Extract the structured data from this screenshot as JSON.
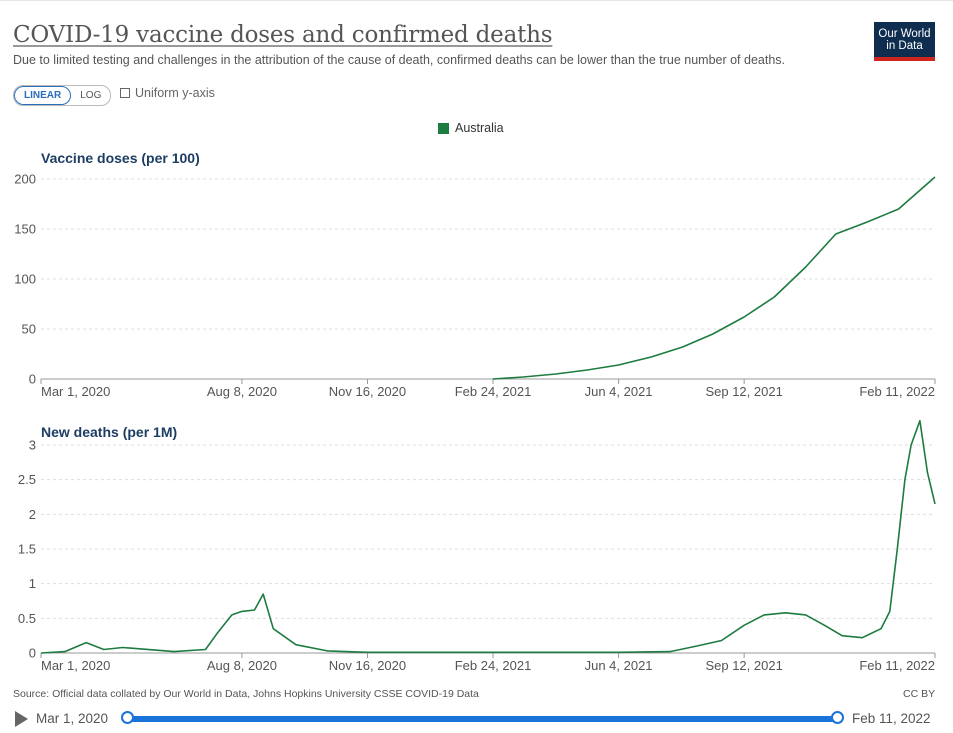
{
  "header": {
    "title": "COVID-19 vaccine doses and confirmed deaths",
    "subtitle": "Due to limited testing and challenges in the attribution of the cause of death, confirmed deaths can be lower than the true number of deaths.",
    "logo_line1": "Our World",
    "logo_line2": "in Data"
  },
  "controls": {
    "linear_label": "LINEAR",
    "log_label": "LOG",
    "active_scale": "LINEAR",
    "uniform_label": "Uniform y-axis",
    "uniform_checked": false
  },
  "legend": {
    "label": "Australia",
    "color": "#1d7c3f"
  },
  "chart_data": [
    {
      "type": "line",
      "title": "Vaccine doses (per 100)",
      "series": [
        {
          "name": "Australia",
          "color": "#1d7c3f",
          "x": [
            "Feb 24, 2021",
            "Mar 20, 2021",
            "Apr 15, 2021",
            "May 10, 2021",
            "Jun 4, 2021",
            "Jun 30, 2021",
            "Jul 25, 2021",
            "Aug 18, 2021",
            "Sep 12, 2021",
            "Oct 6, 2021",
            "Oct 31, 2021",
            "Nov 24, 2021",
            "Dec 19, 2021",
            "Jan 13, 2022",
            "Feb 11, 2022"
          ],
          "values": [
            0,
            2,
            5,
            9,
            14,
            22,
            32,
            45,
            62,
            82,
            112,
            145,
            157,
            170,
            202
          ]
        }
      ],
      "ylim": [
        0,
        200
      ],
      "yticks": [
        "0",
        "50",
        "100",
        "150",
        "200"
      ],
      "xticks": [
        "Mar 1, 2020",
        "Aug 8, 2020",
        "Nov 16, 2020",
        "Feb 24, 2021",
        "Jun 4, 2021",
        "Sep 12, 2021",
        "Feb 11, 2022"
      ]
    },
    {
      "type": "line",
      "title": "New deaths (per 1M)",
      "series": [
        {
          "name": "Australia",
          "color": "#1d7c3f",
          "x": [
            "Mar 1, 2020",
            "Mar 20, 2020",
            "Apr 6, 2020",
            "Apr 20, 2020",
            "May 5, 2020",
            "Jun 15, 2020",
            "Jul 10, 2020",
            "Jul 20, 2020",
            "Jul 31, 2020",
            "Aug 8, 2020",
            "Aug 18, 2020",
            "Aug 25, 2020",
            "Sep 2, 2020",
            "Sep 20, 2020",
            "Oct 15, 2020",
            "Nov 16, 2020",
            "Feb 24, 2021",
            "Jun 4, 2021",
            "Jul 15, 2021",
            "Aug 5, 2021",
            "Aug 25, 2021",
            "Sep 12, 2021",
            "Sep 28, 2021",
            "Oct 15, 2021",
            "Oct 31, 2021",
            "Nov 15, 2021",
            "Nov 29, 2021",
            "Dec 15, 2021",
            "Dec 30, 2021",
            "Jan 6, 2022",
            "Jan 12, 2022",
            "Jan 18, 2022",
            "Jan 23, 2022",
            "Jan 30, 2022",
            "Feb 5, 2022",
            "Feb 11, 2022"
          ],
          "values": [
            0,
            0.02,
            0.15,
            0.05,
            0.08,
            0.02,
            0.05,
            0.3,
            0.55,
            0.6,
            0.62,
            0.85,
            0.35,
            0.12,
            0.03,
            0.01,
            0.01,
            0.01,
            0.02,
            0.1,
            0.18,
            0.4,
            0.55,
            0.58,
            0.55,
            0.4,
            0.25,
            0.22,
            0.35,
            0.6,
            1.5,
            2.5,
            3.0,
            3.35,
            2.6,
            2.15
          ]
        }
      ],
      "ylim": [
        0,
        3.5
      ],
      "yticks": [
        "0",
        "0.5",
        "1",
        "1.5",
        "2",
        "2.5",
        "3"
      ],
      "xticks": [
        "Mar 1, 2020",
        "Aug 8, 2020",
        "Nov 16, 2020",
        "Feb 24, 2021",
        "Jun 4, 2021",
        "Sep 12, 2021",
        "Feb 11, 2022"
      ]
    }
  ],
  "footer": {
    "source": "Source: Official data collated by Our World in Data, Johns Hopkins University CSSE COVID-19 Data",
    "license": "CC BY"
  },
  "timeline": {
    "start": "Mar 1, 2020",
    "end": "Feb 11, 2022"
  }
}
